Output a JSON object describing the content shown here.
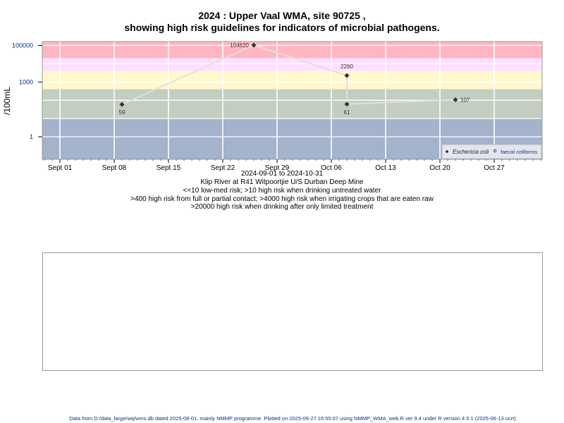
{
  "title": "2024 : Upper Vaal WMA, site 90725 ,",
  "subtitle": "showing high risk guidelines for indicators of microbial pathogens.",
  "notes": [
    "2024-09-01 to 2024-10-31",
    "Klip River at R41 Witpoortjie U/S Durban Deep Mine",
    "<=10 low-med risk; >10 high risk when drinking untreated water",
    ">400 high risk from full or partial contact; >4000 high risk when irrigating crops that are eaten raw",
    ">20000 high risk when drinking after only limited treatment"
  ],
  "footer": "Data from D:/data_large/wq/wms.db dated 2025-08-01, mainly NMMP programme. Plotted on 2025-09-27 16:55:07 using NMMP_WMA_web.R ver 9.4 under R version 4.5.1 (2025-06-13 ucrt)",
  "chart_data": {
    "type": "line",
    "title": "2024 : Upper Vaal WMA, site 90725 , showing high risk guidelines for indicators of microbial pathogens.",
    "xlabel": "2024-09-01 to 2024-10-31",
    "ylabel": "/100mL",
    "y_scale": "log",
    "ylim": [
      0.055,
      170000
    ],
    "xlim": [
      "2024-08-30",
      "2024-11-03"
    ],
    "grid": true,
    "x_ticks": [
      "Sept 01",
      "Sept 08",
      "Sept 15",
      "Sept 22",
      "Sept 29",
      "Oct 06",
      "Oct 13",
      "Oct 20",
      "Oct 27"
    ],
    "x_tick_dates": [
      "2024-09-01",
      "2024-09-08",
      "2024-09-15",
      "2024-09-22",
      "2024-09-29",
      "2024-10-06",
      "2024-10-13",
      "2024-10-20",
      "2024-10-27"
    ],
    "y_ticks": [
      "1",
      "1000",
      "100000"
    ],
    "y_tick_values": [
      1,
      1000,
      100000
    ],
    "bands": [
      {
        "from": 20000,
        "to": 170000,
        "color": "#ffb6c1"
      },
      {
        "from": 4000,
        "to": 20000,
        "color": "#ffdfff"
      },
      {
        "from": 400,
        "to": 4000,
        "color": "#fff8cc"
      },
      {
        "from": 10,
        "to": 400,
        "color": "#c3cdc0"
      },
      {
        "from": 0.055,
        "to": 10,
        "color": "#a2b3cb"
      }
    ],
    "series": [
      {
        "name": "Eschericia coli",
        "marker": "filled-diamond",
        "color": "#333333",
        "x": [
          "2024-09-09",
          "2024-09-26",
          "2024-10-08",
          "2024-10-08",
          "2024-10-22"
        ],
        "y": [
          59,
          104620,
          2260,
          61,
          107
        ],
        "labels": [
          "59",
          "104620",
          "2260",
          "61",
          "107"
        ]
      },
      {
        "name": "faecal coliforms",
        "marker": "open-circle",
        "color": "#333333",
        "x": [],
        "y": []
      }
    ],
    "line_color": "#e0e0e0",
    "legend": "bottom-right"
  }
}
